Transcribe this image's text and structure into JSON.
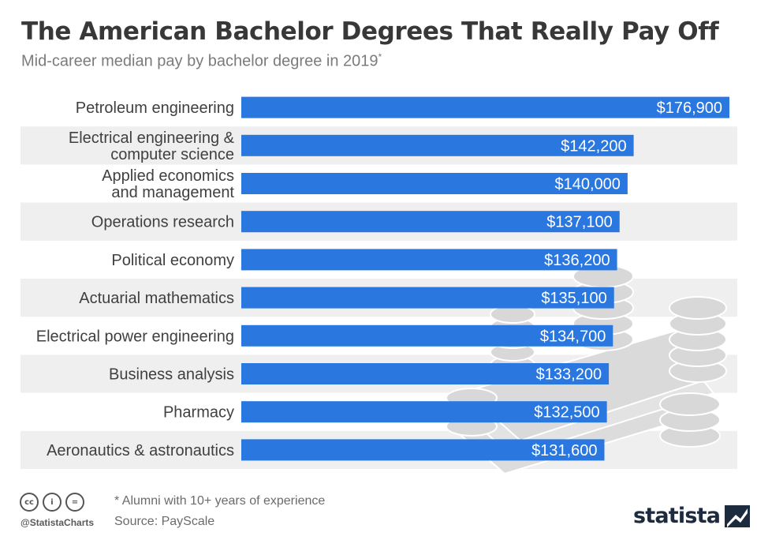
{
  "header": {
    "title": "The American Bachelor Degrees That Really Pay Off",
    "subtitle": "Mid-career median pay by bachelor degree in 2019",
    "subtitle_marker": "*"
  },
  "chart_data": {
    "type": "bar",
    "orientation": "horizontal",
    "title": "The American Bachelor Degrees That Really Pay Off",
    "subtitle": "Mid-career median pay by bachelor degree in 2019*",
    "categories": [
      "Petroleum engineering",
      "Electrical engineering & computer science",
      "Applied economics and management",
      "Operations research",
      "Political economy",
      "Actuarial mathematics",
      "Electrical power engineering",
      "Business analysis",
      "Pharmacy",
      "Aeronautics & astronautics"
    ],
    "category_lines": [
      [
        "Petroleum engineering"
      ],
      [
        "Electrical engineering &",
        "computer science"
      ],
      [
        "Applied economics",
        "and management"
      ],
      [
        "Operations research"
      ],
      [
        "Political economy"
      ],
      [
        "Actuarial mathematics"
      ],
      [
        "Electrical power engineering"
      ],
      [
        "Business analysis"
      ],
      [
        "Pharmacy"
      ],
      [
        "Aeronautics & astronautics"
      ]
    ],
    "values": [
      176900,
      142200,
      140000,
      137100,
      136200,
      135100,
      134700,
      133200,
      132500,
      131600
    ],
    "value_labels": [
      "$176,900",
      "$142,200",
      "$140,000",
      "$137,100",
      "$136,200",
      "$135,100",
      "$134,700",
      "$133,200",
      "$132,500",
      "$131,600"
    ],
    "xlim": [
      0,
      176900
    ],
    "grid": false,
    "legend": "none",
    "bar_color": "#2a77e0",
    "stripe_color": "#efefef",
    "value_label_color": "#ffffff"
  },
  "footer": {
    "note": "* Alumni with 10+ years of experience",
    "source": "Source: PayScale",
    "handle": "@StatistaCharts",
    "brand": "statista",
    "license_icons": [
      "cc-icon",
      "by-icon",
      "nd-icon"
    ],
    "license_glyphs": [
      "cc",
      "i",
      "="
    ]
  },
  "decoration": {
    "background_art": "coin-stacks-and-cash-icon"
  }
}
